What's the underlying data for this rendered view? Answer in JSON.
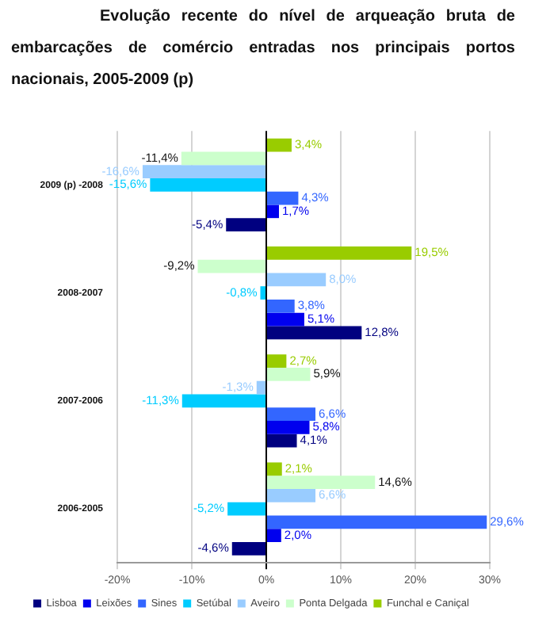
{
  "chart_data": {
    "type": "bar",
    "orientation": "horizontal",
    "title": "Evolução recente do nível de arqueação bruta de embarcações de comércio entradas nos principais portos nacionais, 2005-2009 (p)",
    "categories": [
      "2009 (p) -2008",
      "2008-2007",
      "2007-2006",
      "2006-2005"
    ],
    "series": [
      {
        "name": "Lisboa",
        "color": "#000080",
        "values": [
          -5.4,
          12.8,
          4.1,
          -4.6
        ],
        "value_labels": [
          "-5,4%",
          "12,8%",
          "4,1%",
          "-4,6%"
        ]
      },
      {
        "name": "Leixões",
        "color": "#0000ee",
        "values": [
          1.7,
          5.1,
          5.8,
          2.0
        ],
        "value_labels": [
          "1,7%",
          "5,1%",
          "5,8%",
          "2,0%"
        ]
      },
      {
        "name": "Sines",
        "color": "#3366ff",
        "values": [
          4.3,
          3.8,
          6.6,
          29.6
        ],
        "value_labels": [
          "4,3%",
          "3,8%",
          "6,6%",
          "29,6%"
        ]
      },
      {
        "name": "Setúbal",
        "color": "#00ccff",
        "values": [
          -15.6,
          -0.8,
          -11.3,
          -5.2
        ],
        "value_labels": [
          "-15,6%",
          "-0,8%",
          "-11,3%",
          "-5,2%"
        ]
      },
      {
        "name": "Aveiro",
        "color": "#99ccff",
        "values": [
          -16.6,
          8.0,
          -1.3,
          6.6
        ],
        "value_labels": [
          "-16,6%",
          "8,0%",
          "-1,3%",
          "6,6%"
        ]
      },
      {
        "name": "Ponta Delgada",
        "color": "#ccffcc",
        "values": [
          -11.4,
          -9.2,
          5.9,
          14.6
        ],
        "value_labels": [
          "-11,4%",
          "-9,2%",
          "5,9%",
          "14,6%"
        ]
      },
      {
        "name": "Funchal e Caniçal",
        "color": "#99cc00",
        "values": [
          3.4,
          19.5,
          2.7,
          2.1
        ],
        "value_labels": [
          "3,4%",
          "19,5%",
          "2,7%",
          "2,1%"
        ]
      }
    ],
    "xlim": [
      -20,
      30
    ],
    "xticks": [
      {
        "value": -20,
        "label": "-20%"
      },
      {
        "value": -10,
        "label": "-10%"
      },
      {
        "value": 0,
        "label": "0%"
      },
      {
        "value": 10,
        "label": "10%"
      },
      {
        "value": 20,
        "label": "20%"
      },
      {
        "value": 30,
        "label": "30%"
      }
    ],
    "grid": "x",
    "legend": "bottom"
  }
}
